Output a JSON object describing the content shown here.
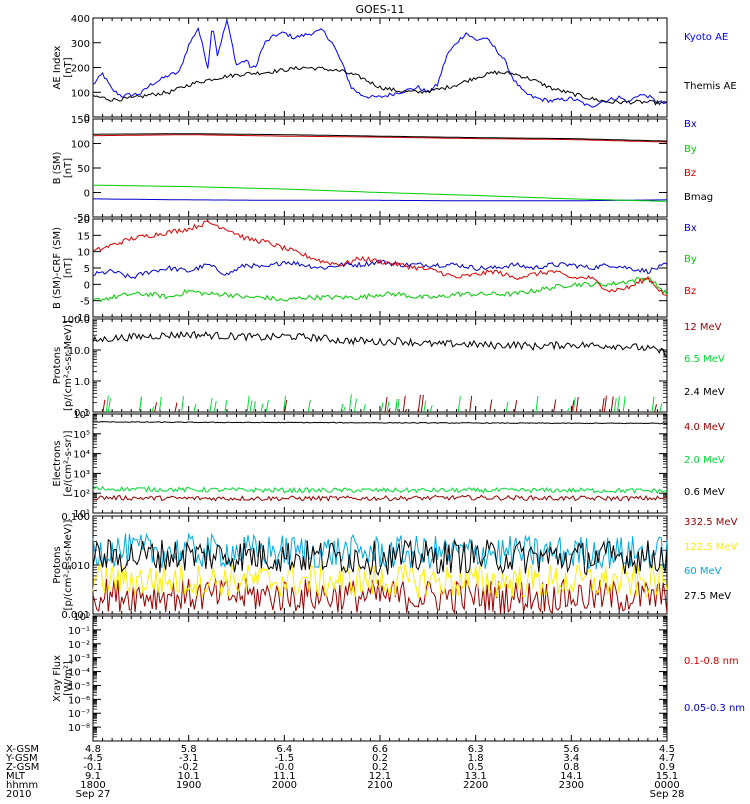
{
  "title": "GOES-11",
  "chart_data": [
    {
      "type": "line",
      "panel": "ae",
      "ylabel": "AE Index\n[nT]",
      "ylim": [
        0,
        400
      ],
      "yticks": [
        {
          "v": 0,
          "l": "0"
        },
        {
          "v": 100,
          "l": "100"
        },
        {
          "v": 200,
          "l": "200"
        },
        {
          "v": 300,
          "l": "300"
        },
        {
          "v": 400,
          "l": "400"
        }
      ],
      "series": [
        {
          "name": "Kyoto AE",
          "color": "#0000ff",
          "x": [
            0,
            10,
            20,
            30,
            40,
            50,
            60,
            70,
            80,
            90,
            100,
            110,
            120,
            125,
            130,
            140,
            150,
            160,
            165,
            170,
            175,
            180,
            190,
            200,
            210,
            220,
            230,
            240,
            250,
            260,
            270,
            280,
            290,
            300,
            310,
            320,
            330,
            340,
            350,
            360,
            370,
            380,
            390,
            400,
            410,
            420,
            430,
            440,
            450,
            460,
            470,
            480,
            490,
            500,
            510,
            520,
            530,
            540,
            550,
            560,
            570,
            580,
            590,
            600
          ],
          "y": [
            130,
            175,
            110,
            85,
            90,
            95,
            130,
            150,
            170,
            180,
            290,
            360,
            200,
            380,
            250,
            390,
            210,
            230,
            200,
            200,
            260,
            300,
            330,
            340,
            320,
            330,
            340,
            350,
            300,
            220,
            120,
            90,
            80,
            80,
            90,
            100,
            110,
            120,
            100,
            130,
            250,
            300,
            340,
            310,
            320,
            280,
            230,
            150,
            100,
            80,
            70,
            65,
            70,
            75,
            60,
            40,
            60,
            70,
            80,
            60,
            90,
            85,
            60,
            55
          ]
        },
        {
          "name": "Themis AE",
          "color": "#000000",
          "x": [
            0,
            20,
            40,
            60,
            80,
            100,
            120,
            140,
            160,
            180,
            200,
            220,
            240,
            260,
            280,
            300,
            320,
            340,
            360,
            380,
            400,
            420,
            440,
            460,
            480,
            500,
            520,
            540,
            560,
            580,
            600
          ],
          "y": [
            85,
            70,
            75,
            90,
            100,
            130,
            150,
            165,
            175,
            180,
            190,
            200,
            195,
            185,
            160,
            120,
            105,
            100,
            110,
            130,
            160,
            180,
            175,
            150,
            115,
            95,
            75,
            60,
            60,
            60,
            55
          ]
        }
      ]
    },
    {
      "type": "line",
      "panel": "b",
      "ylabel": "B (SM)\n[nT]",
      "ylim": [
        -50,
        150
      ],
      "yticks": [
        {
          "v": -50,
          "l": "-50"
        },
        {
          "v": 0,
          "l": "0"
        },
        {
          "v": 50,
          "l": "50"
        },
        {
          "v": 100,
          "l": "100"
        },
        {
          "v": 150,
          "l": "150"
        }
      ],
      "series": [
        {
          "name": "Bx",
          "color": "#0000cc",
          "x": [
            0,
            100,
            200,
            300,
            400,
            500,
            600
          ],
          "y": [
            -13,
            -15,
            -16,
            -16,
            -17,
            -17,
            -15
          ]
        },
        {
          "name": "By",
          "color": "#00cc00",
          "x": [
            0,
            100,
            200,
            300,
            400,
            500,
            600
          ],
          "y": [
            15,
            12,
            7,
            0,
            -6,
            -13,
            -18
          ]
        },
        {
          "name": "Bz",
          "color": "#cc0000",
          "x": [
            0,
            100,
            200,
            300,
            400,
            500,
            600
          ],
          "y": [
            116,
            118,
            115,
            113,
            110,
            108,
            103
          ]
        },
        {
          "name": "Bmag",
          "color": "#000000",
          "x": [
            0,
            100,
            200,
            300,
            400,
            500,
            600
          ],
          "y": [
            119,
            120,
            118,
            115,
            112,
            110,
            105
          ]
        }
      ]
    },
    {
      "type": "line",
      "panel": "bdiff",
      "ylabel": "B (SM)-CRF (SM)\n[nT]",
      "ylim": [
        -10,
        20
      ],
      "yticks": [
        {
          "v": -10,
          "l": "-10"
        },
        {
          "v": -5,
          "l": "-5"
        },
        {
          "v": 0,
          "l": "0"
        },
        {
          "v": 5,
          "l": "5"
        },
        {
          "v": 10,
          "l": "10"
        },
        {
          "v": 15,
          "l": "15"
        },
        {
          "v": 20,
          "l": "20"
        }
      ],
      "series": [
        {
          "name": "Bx",
          "color": "#0000cc",
          "x": [
            0,
            20,
            40,
            60,
            80,
            100,
            120,
            140,
            160,
            180,
            200,
            220,
            240,
            260,
            280,
            300,
            320,
            340,
            360,
            380,
            400,
            420,
            440,
            460,
            480,
            500,
            520,
            540,
            560,
            580,
            600
          ],
          "y": [
            3,
            4,
            2,
            4,
            5,
            4,
            6,
            3,
            6,
            5,
            7,
            6,
            5,
            6,
            6,
            7,
            6,
            6,
            6,
            6,
            5,
            5,
            6,
            5,
            6,
            6,
            5,
            6,
            5,
            4,
            6
          ]
        },
        {
          "name": "By",
          "color": "#00cc00",
          "x": [
            0,
            20,
            40,
            60,
            80,
            100,
            120,
            140,
            160,
            180,
            200,
            220,
            240,
            260,
            280,
            300,
            320,
            340,
            360,
            380,
            400,
            420,
            440,
            460,
            480,
            500,
            520,
            540,
            560,
            580,
            600
          ],
          "y": [
            -5,
            -4,
            -3,
            -3,
            -4,
            -2,
            -3,
            -3,
            -4,
            -4,
            -5,
            -4,
            -4,
            -4,
            -4,
            -3,
            -3,
            -4,
            -4,
            -3,
            -3,
            -3,
            -3,
            -2,
            -1,
            0,
            0,
            0,
            1,
            2,
            -3
          ]
        },
        {
          "name": "Bz",
          "color": "#dd0000",
          "x": [
            0,
            20,
            40,
            60,
            80,
            100,
            120,
            140,
            160,
            180,
            200,
            220,
            240,
            260,
            280,
            300,
            320,
            340,
            360,
            380,
            400,
            420,
            440,
            460,
            480,
            500,
            520,
            540,
            560,
            580,
            600
          ],
          "y": [
            10,
            12,
            14,
            15,
            16,
            17,
            19,
            17,
            14,
            13,
            11,
            9,
            7,
            6,
            8,
            7,
            6,
            5,
            4,
            2,
            3,
            4,
            2,
            3,
            4,
            2,
            2,
            -2,
            -1,
            2,
            -4
          ]
        }
      ]
    },
    {
      "type": "line",
      "panel": "protons1",
      "ylabel": "Protons\n[p/(cm²-s-sr-MeV)]",
      "log": true,
      "ylim": [
        0.1,
        100
      ],
      "yticks": [
        {
          "v": 0.1,
          "l": "0.1"
        },
        {
          "v": 1,
          "l": "1.0"
        },
        {
          "v": 10,
          "l": "10.0"
        },
        {
          "v": 100,
          "l": "100.0"
        }
      ],
      "series": [
        {
          "name": "12 MeV",
          "color": "#990000",
          "x": [],
          "y": []
        },
        {
          "name": "6.5 MeV",
          "color": "#00dd33",
          "x": [],
          "y": []
        },
        {
          "name": "2.4 MeV",
          "color": "#000000",
          "x": [
            0,
            20,
            40,
            60,
            80,
            100,
            120,
            140,
            160,
            180,
            200,
            220,
            240,
            260,
            280,
            300,
            320,
            340,
            360,
            380,
            400,
            420,
            440,
            460,
            480,
            500,
            520,
            540,
            560,
            580,
            600
          ],
          "y": [
            20,
            24,
            26,
            28,
            30,
            32,
            30,
            28,
            27,
            25,
            28,
            26,
            24,
            20,
            20,
            18,
            20,
            17,
            15,
            16,
            15,
            14,
            15,
            13,
            14,
            15,
            14,
            14,
            13,
            11,
            8
          ]
        }
      ]
    },
    {
      "type": "line",
      "panel": "electrons",
      "ylabel": "Electrons\n[e/(cm²-s-sr)]",
      "log": true,
      "ylim": [
        10,
        1000000
      ],
      "yticks": [
        {
          "v": 10,
          "l": "10¹"
        },
        {
          "v": 100,
          "l": "10²"
        },
        {
          "v": 1000,
          "l": "10³"
        },
        {
          "v": 10000,
          "l": "10⁴"
        },
        {
          "v": 100000,
          "l": "10⁵"
        },
        {
          "v": 1000000,
          "l": "10⁶"
        }
      ],
      "series": [
        {
          "name": "4.0 MeV",
          "color": "#990000",
          "x": [
            0,
            100,
            200,
            300,
            400,
            500,
            600
          ],
          "y": [
            60,
            55,
            55,
            55,
            60,
            55,
            55
          ]
        },
        {
          "name": "2.0 MeV",
          "color": "#00dd33",
          "x": [
            0,
            100,
            200,
            300,
            400,
            500,
            600
          ],
          "y": [
            170,
            150,
            140,
            140,
            140,
            140,
            130
          ]
        },
        {
          "name": "0.6 MeV",
          "color": "#000000",
          "x": [
            0,
            100,
            200,
            300,
            400,
            500,
            600
          ],
          "y": [
            400000,
            380000,
            370000,
            360000,
            350000,
            340000,
            340000
          ]
        }
      ]
    },
    {
      "type": "line",
      "panel": "protons2",
      "ylabel": "Protons\n[p/(cm²-s-sr-MeV)]",
      "log": true,
      "ylim": [
        0.001,
        0.1
      ],
      "yticks": [
        {
          "v": 0.001,
          "l": "0.001"
        },
        {
          "v": 0.01,
          "l": "0.010"
        },
        {
          "v": 0.1,
          "l": "0.100"
        }
      ],
      "series": [
        {
          "name": "332.5 MeV",
          "color": "#990000",
          "x": [
            0,
            100,
            200,
            300,
            400,
            500,
            600
          ],
          "y": [
            0.0025,
            0.0024,
            0.0024,
            0.0023,
            0.0023,
            0.0023,
            0.0022
          ]
        },
        {
          "name": "122.5 MeV",
          "color": "#ffee00",
          "x": [
            0,
            100,
            200,
            300,
            400,
            500,
            600
          ],
          "y": [
            0.005,
            0.0048,
            0.0048,
            0.0047,
            0.0046,
            0.0046,
            0.0045
          ]
        },
        {
          "name": "60 MeV",
          "color": "#00aadd",
          "x": [
            0,
            100,
            200,
            300,
            400,
            500,
            600
          ],
          "y": [
            0.02,
            0.019,
            0.019,
            0.018,
            0.018,
            0.018,
            0.018
          ]
        },
        {
          "name": "27.5 MeV",
          "color": "#000000",
          "x": [
            0,
            100,
            200,
            300,
            400,
            500,
            600
          ],
          "y": [
            0.015,
            0.016,
            0.015,
            0.014,
            0.015,
            0.014,
            0.015
          ]
        }
      ]
    },
    {
      "type": "line",
      "panel": "xray",
      "ylabel": "Xray Flux\n[W/m²]",
      "log": true,
      "ylim": [
        1e-09,
        1
      ],
      "yticks": [
        {
          "v": 1,
          "l": "10⁰"
        },
        {
          "v": 0.1,
          "l": "10⁻¹"
        },
        {
          "v": 0.01,
          "l": "10⁻²"
        },
        {
          "v": 0.001,
          "l": "10⁻³"
        },
        {
          "v": 0.0001,
          "l": "10⁻⁴"
        },
        {
          "v": 1e-05,
          "l": "10⁻⁵"
        },
        {
          "v": 1e-06,
          "l": "10⁻⁶"
        },
        {
          "v": 1e-07,
          "l": "10⁻⁷"
        },
        {
          "v": 1e-08,
          "l": "10⁻⁸"
        }
      ],
      "series": [
        {
          "name": "0.1-0.8 nm",
          "color": "#cc0000",
          "x": [],
          "y": []
        },
        {
          "name": "0.05-0.3 nm",
          "color": "#0000cc",
          "x": [],
          "y": []
        }
      ]
    }
  ],
  "footer": {
    "row_labels": [
      "X-GSM",
      "Y-GSM",
      "Z-GSM",
      "MLT",
      "hhmm",
      "2010"
    ],
    "columns": [
      {
        "x": 0,
        "values": [
          "4.8",
          "-4.5",
          "-0.1",
          "9.1",
          "1800",
          "Sep 27"
        ]
      },
      {
        "x": 100,
        "values": [
          "5.8",
          "-3.1",
          "-0.2",
          "10.1",
          "1900",
          ""
        ]
      },
      {
        "x": 200,
        "values": [
          "6.4",
          "-1.5",
          "-0.0",
          "11.1",
          "2000",
          ""
        ]
      },
      {
        "x": 300,
        "values": [
          "6.6",
          "0.2",
          "0.2",
          "12.1",
          "2100",
          ""
        ]
      },
      {
        "x": 400,
        "values": [
          "6.3",
          "1.8",
          "0.5",
          "13.1",
          "2200",
          ""
        ]
      },
      {
        "x": 500,
        "values": [
          "5.6",
          "3.4",
          "0.8",
          "14.1",
          "2300",
          ""
        ]
      },
      {
        "x": 600,
        "values": [
          "4.5",
          "4.7",
          "0.9",
          "15.1",
          "0000",
          "Sep 28"
        ]
      }
    ]
  }
}
